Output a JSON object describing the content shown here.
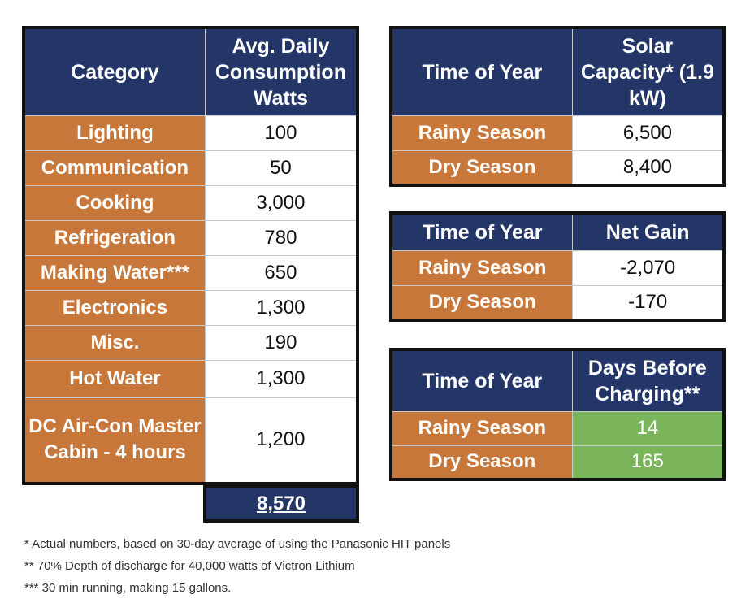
{
  "consumption_table": {
    "header": {
      "category": "Category",
      "consumption": "Avg. Daily Consumption Watts"
    },
    "rows": [
      {
        "category": "Lighting",
        "value": "100"
      },
      {
        "category": "Communication",
        "value": "50"
      },
      {
        "category": "Cooking",
        "value": "3,000"
      },
      {
        "category": "Refrigeration",
        "value": "780"
      },
      {
        "category": "Making Water***",
        "value": "650"
      },
      {
        "category": "Electronics",
        "value": "1,300"
      },
      {
        "category": "Misc.",
        "value": "190"
      },
      {
        "category": "Hot Water",
        "value": "1,300"
      },
      {
        "category": "DC Air-Con Master Cabin - 4 hours",
        "value": "1,200"
      }
    ],
    "total": "8,570"
  },
  "solar_table": {
    "header": {
      "time": "Time of Year",
      "capacity": "Solar Capacity* (1.9 kW)"
    },
    "rows": [
      {
        "season": "Rainy Season",
        "value": "6,500"
      },
      {
        "season": "Dry Season",
        "value": "8,400"
      }
    ]
  },
  "netgain_table": {
    "header": {
      "time": "Time of Year",
      "gain": "Net Gain"
    },
    "rows": [
      {
        "season": "Rainy Season",
        "value": "-2,070"
      },
      {
        "season": "Dry Season",
        "value": "-170"
      }
    ]
  },
  "days_table": {
    "header": {
      "time": "Time of Year",
      "days": "Days Before Charging**"
    },
    "rows": [
      {
        "season": "Rainy Season",
        "value": "14"
      },
      {
        "season": "Dry Season",
        "value": "165"
      }
    ]
  },
  "footnotes": [
    "* Actual numbers,  based on 30-day average of using the Panasonic HIT panels",
    "** 70% Depth of discharge for 40,000 watts of Victron Lithium",
    "*** 30 min running, making 15 gallons."
  ],
  "colors": {
    "header_navy": "#243568",
    "category_orange": "#c8773a",
    "highlight_green": "#7ab55c"
  }
}
